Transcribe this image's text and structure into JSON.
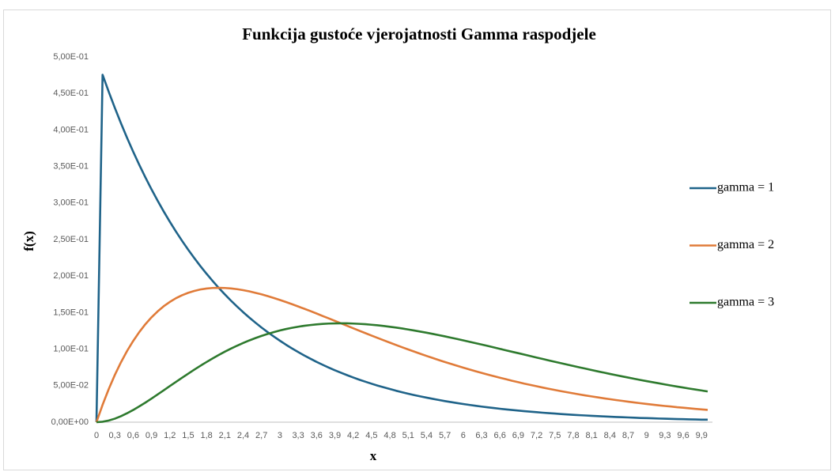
{
  "chart_data": {
    "type": "line",
    "title": "Funkcija gustoće vjerojatnosti Gamma raspodjele",
    "x_label": "x",
    "y_label": "f(x)",
    "legend": "right",
    "grid": false,
    "categories": [
      "0",
      null,
      null,
      "0,3",
      null,
      null,
      "0,6",
      null,
      null,
      "0,9",
      null,
      null,
      "1,2",
      null,
      null,
      "1,5",
      null,
      null,
      "1,8",
      null,
      null,
      "2,1",
      null,
      null,
      "2,4",
      null,
      null,
      "2,7",
      null,
      null,
      "3",
      null,
      null,
      "3,3",
      null,
      null,
      "3,6",
      null,
      null,
      "3,9",
      null,
      null,
      "4,2",
      null,
      null,
      "4,5",
      null,
      null,
      "4,8",
      null,
      null,
      "5,1",
      null,
      null,
      "5,4",
      null,
      null,
      "5,7",
      null,
      null,
      "6",
      null,
      null,
      "6,3",
      null,
      null,
      "6,6",
      null,
      null,
      "6,9",
      null,
      null,
      "7,2",
      null,
      null,
      "7,5",
      null,
      null,
      "7,8",
      null,
      null,
      "8,1",
      null,
      null,
      "8,4",
      null,
      null,
      "8,7",
      null,
      null,
      "9",
      null,
      null,
      "9,3",
      null,
      null,
      "9,6",
      null,
      null,
      "9,9",
      null
    ],
    "ylim": [
      0,
      0.5
    ],
    "yticks": [
      {
        "value": 0,
        "label": "0,00E+00"
      },
      {
        "value": 0.05,
        "label": "5,00E-02"
      },
      {
        "value": 0.1,
        "label": "1,00E-01"
      },
      {
        "value": 0.15,
        "label": "1,50E-01"
      },
      {
        "value": 0.2,
        "label": "2,00E-01"
      },
      {
        "value": 0.25,
        "label": "2,50E-01"
      },
      {
        "value": 0.3,
        "label": "3,00E-01"
      },
      {
        "value": 0.35,
        "label": "3,50E-01"
      },
      {
        "value": 0.4,
        "label": "4,00E-01"
      },
      {
        "value": 0.45,
        "label": "4,50E-01"
      },
      {
        "value": 0.5,
        "label": "5,00E-01"
      }
    ],
    "series": [
      {
        "name": "gamma = 1",
        "color": "#1f6389",
        "values": [
          0,
          0.4756,
          0.4524,
          0.4304,
          0.4094,
          0.3894,
          0.3704,
          0.3523,
          0.3352,
          0.3188,
          0.3033,
          0.2885,
          0.2744,
          0.261,
          0.2483,
          0.2362,
          0.2247,
          0.2137,
          0.2033,
          0.1934,
          0.1839,
          0.175,
          0.1664,
          0.1583,
          0.1506,
          0.1433,
          0.1363,
          0.1296,
          0.1233,
          0.1173,
          0.1116,
          0.1061,
          0.1009,
          0.096,
          0.0913,
          0.0869,
          0.0826,
          0.0786,
          0.0748,
          0.0711,
          0.0677,
          0.0644,
          0.0612,
          0.0582,
          0.0554,
          0.0527,
          0.0501,
          0.0477,
          0.0454,
          0.0431,
          0.041,
          0.039,
          0.0371,
          0.0353,
          0.0336,
          0.032,
          0.0304,
          0.0289,
          0.0275,
          0.0262,
          0.0249,
          0.0237,
          0.0225,
          0.0214,
          0.0204,
          0.0194,
          0.0184,
          0.0175,
          0.0167,
          0.0159,
          0.0151,
          0.0144,
          0.0137,
          0.013,
          0.0124,
          0.0118,
          0.0112,
          0.0106,
          0.0101,
          0.0096,
          0.0092,
          0.0087,
          0.0083,
          0.0079,
          0.0075,
          0.0071,
          0.0068,
          0.0065,
          0.0061,
          0.0058,
          0.0056,
          0.0053,
          0.005,
          0.0048,
          0.0045,
          0.0043,
          0.0041,
          0.0039,
          0.0037,
          0.0035,
          0.0034
        ]
      },
      {
        "name": "gamma = 2",
        "color": "#e07b39",
        "values": [
          0,
          0.0238,
          0.0452,
          0.0646,
          0.0819,
          0.0974,
          0.1111,
          0.1233,
          0.1341,
          0.1435,
          0.1516,
          0.1587,
          0.1646,
          0.1697,
          0.1738,
          0.1771,
          0.1797,
          0.1817,
          0.183,
          0.1837,
          0.1839,
          0.1837,
          0.1831,
          0.1821,
          0.1807,
          0.1791,
          0.1771,
          0.175,
          0.1726,
          0.1701,
          0.1673,
          0.1645,
          0.1615,
          0.1584,
          0.1553,
          0.1521,
          0.1488,
          0.1454,
          0.1421,
          0.1387,
          0.1353,
          0.132,
          0.1286,
          0.1252,
          0.1219,
          0.1186,
          0.1153,
          0.1121,
          0.1089,
          0.1057,
          0.1026,
          0.0996,
          0.0966,
          0.0936,
          0.0907,
          0.0879,
          0.0851,
          0.0824,
          0.0798,
          0.0772,
          0.0747,
          0.0722,
          0.0698,
          0.0675,
          0.0652,
          0.063,
          0.0609,
          0.0588,
          0.0567,
          0.0548,
          0.0528,
          0.051,
          0.0492,
          0.0474,
          0.0457,
          0.0441,
          0.0425,
          0.041,
          0.0395,
          0.038,
          0.0366,
          0.0353,
          0.034,
          0.0327,
          0.0315,
          0.0303,
          0.0292,
          0.0281,
          0.027,
          0.026,
          0.025,
          0.024,
          0.0231,
          0.0222,
          0.0214,
          0.0205,
          0.0198,
          0.019,
          0.0182,
          0.0175,
          0.0168
        ]
      },
      {
        "name": "gamma = 3",
        "color": "#2e7a2e",
        "values": [
          0,
          0.0006,
          0.0023,
          0.0048,
          0.0082,
          0.0122,
          0.0167,
          0.0216,
          0.0268,
          0.0323,
          0.0379,
          0.0436,
          0.0494,
          0.0551,
          0.0608,
          0.0664,
          0.0719,
          0.0772,
          0.0823,
          0.0873,
          0.092,
          0.0965,
          0.1007,
          0.1047,
          0.1084,
          0.1119,
          0.1151,
          0.1181,
          0.1208,
          0.1233,
          0.1255,
          0.1275,
          0.1292,
          0.1307,
          0.132,
          0.133,
          0.1339,
          0.1345,
          0.135,
          0.1352,
          0.1353,
          0.1353,
          0.135,
          0.1346,
          0.1341,
          0.1334,
          0.1326,
          0.1317,
          0.1306,
          0.1295,
          0.1283,
          0.1269,
          0.1255,
          0.124,
          0.1225,
          0.1209,
          0.1192,
          0.1175,
          0.1157,
          0.1139,
          0.112,
          0.1101,
          0.1082,
          0.1063,
          0.1044,
          0.1024,
          0.1004,
          0.0984,
          0.0964,
          0.0945,
          0.0925,
          0.0905,
          0.0885,
          0.0866,
          0.0846,
          0.0827,
          0.0808,
          0.0789,
          0.077,
          0.0751,
          0.0733,
          0.0714,
          0.0696,
          0.0679,
          0.0661,
          0.0644,
          0.0627,
          0.0611,
          0.0594,
          0.0578,
          0.0562,
          0.0547,
          0.0532,
          0.0517,
          0.0502,
          0.0488,
          0.0474,
          0.046,
          0.0447,
          0.0434,
          0.0421
        ]
      }
    ]
  }
}
